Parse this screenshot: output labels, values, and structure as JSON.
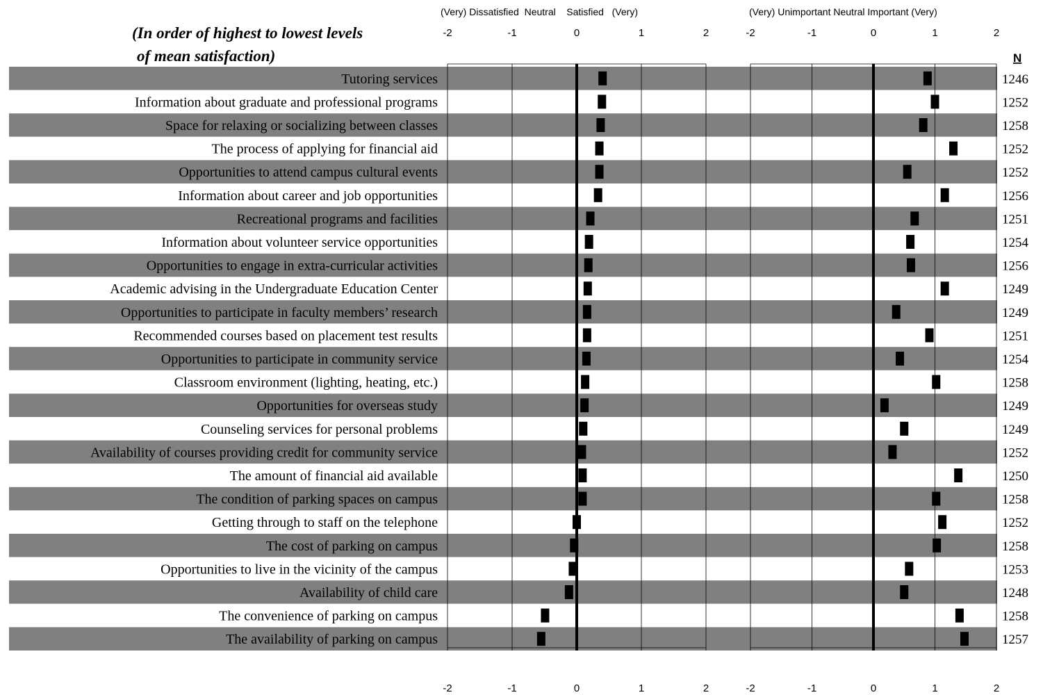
{
  "chart_data": {
    "type": "bar",
    "subtitle_line1": "(In order of highest to lowest levels",
    "subtitle_line2": "of mean satisfaction)",
    "n_header": "N",
    "satisfaction_scale_label": "(Very) Dissatisfied  Neutral    Satisfied   (Very)",
    "importance_scale_label": "(Very) Unimportant Neutral Important (Very)",
    "tick_labels": [
      "-2",
      "-1",
      "0",
      "1",
      "2"
    ],
    "xlim": [
      -2,
      2
    ],
    "row_colors": {
      "shaded": "#808080",
      "plain": "#ffffff",
      "marker": "#000000"
    },
    "categories": [
      "Tutoring services",
      "Information about graduate and professional programs",
      "Space for relaxing or socializing between classes",
      "The process of applying for financial aid",
      "Opportunities to attend campus cultural events",
      "Information about career and job opportunities",
      "Recreational programs and facilities",
      "Information about volunteer service opportunities",
      "Opportunities to engage in extra-curricular activities",
      "Academic advising in the Undergraduate Education Center",
      "Opportunities to participate in faculty members’ research",
      "Recommended courses based on placement test results",
      "Opportunities to participate in community service",
      "Classroom environment (lighting, heating, etc.)",
      "Opportunities for overseas study",
      "Counseling services for personal problems",
      "Availability of courses providing credit for community service",
      "The amount of financial aid available",
      "The condition of parking spaces on campus",
      "Getting through to staff on the telephone",
      "The cost of parking on campus",
      "Opportunities to live in the vicinity of the campus",
      "Availability of child care",
      "The convenience of parking on campus",
      "The availability of parking on campus"
    ],
    "series": [
      {
        "name": "Satisfaction",
        "values": [
          0.4,
          0.39,
          0.37,
          0.35,
          0.35,
          0.33,
          0.21,
          0.19,
          0.18,
          0.17,
          0.16,
          0.16,
          0.15,
          0.13,
          0.12,
          0.1,
          0.08,
          0.09,
          0.09,
          0.0,
          -0.04,
          -0.06,
          -0.12,
          -0.49,
          -0.55
        ]
      },
      {
        "name": "Importance",
        "values": [
          0.88,
          1.0,
          0.81,
          1.3,
          0.55,
          1.16,
          0.67,
          0.6,
          0.61,
          1.16,
          0.37,
          0.91,
          0.43,
          1.02,
          0.18,
          0.5,
          0.31,
          1.38,
          1.02,
          1.12,
          1.03,
          0.58,
          0.5,
          1.4,
          1.48
        ]
      }
    ],
    "n_values": [
      1246,
      1252,
      1258,
      1252,
      1252,
      1256,
      1251,
      1254,
      1256,
      1249,
      1249,
      1251,
      1254,
      1258,
      1249,
      1249,
      1252,
      1250,
      1258,
      1252,
      1258,
      1253,
      1248,
      1258,
      1257
    ]
  }
}
